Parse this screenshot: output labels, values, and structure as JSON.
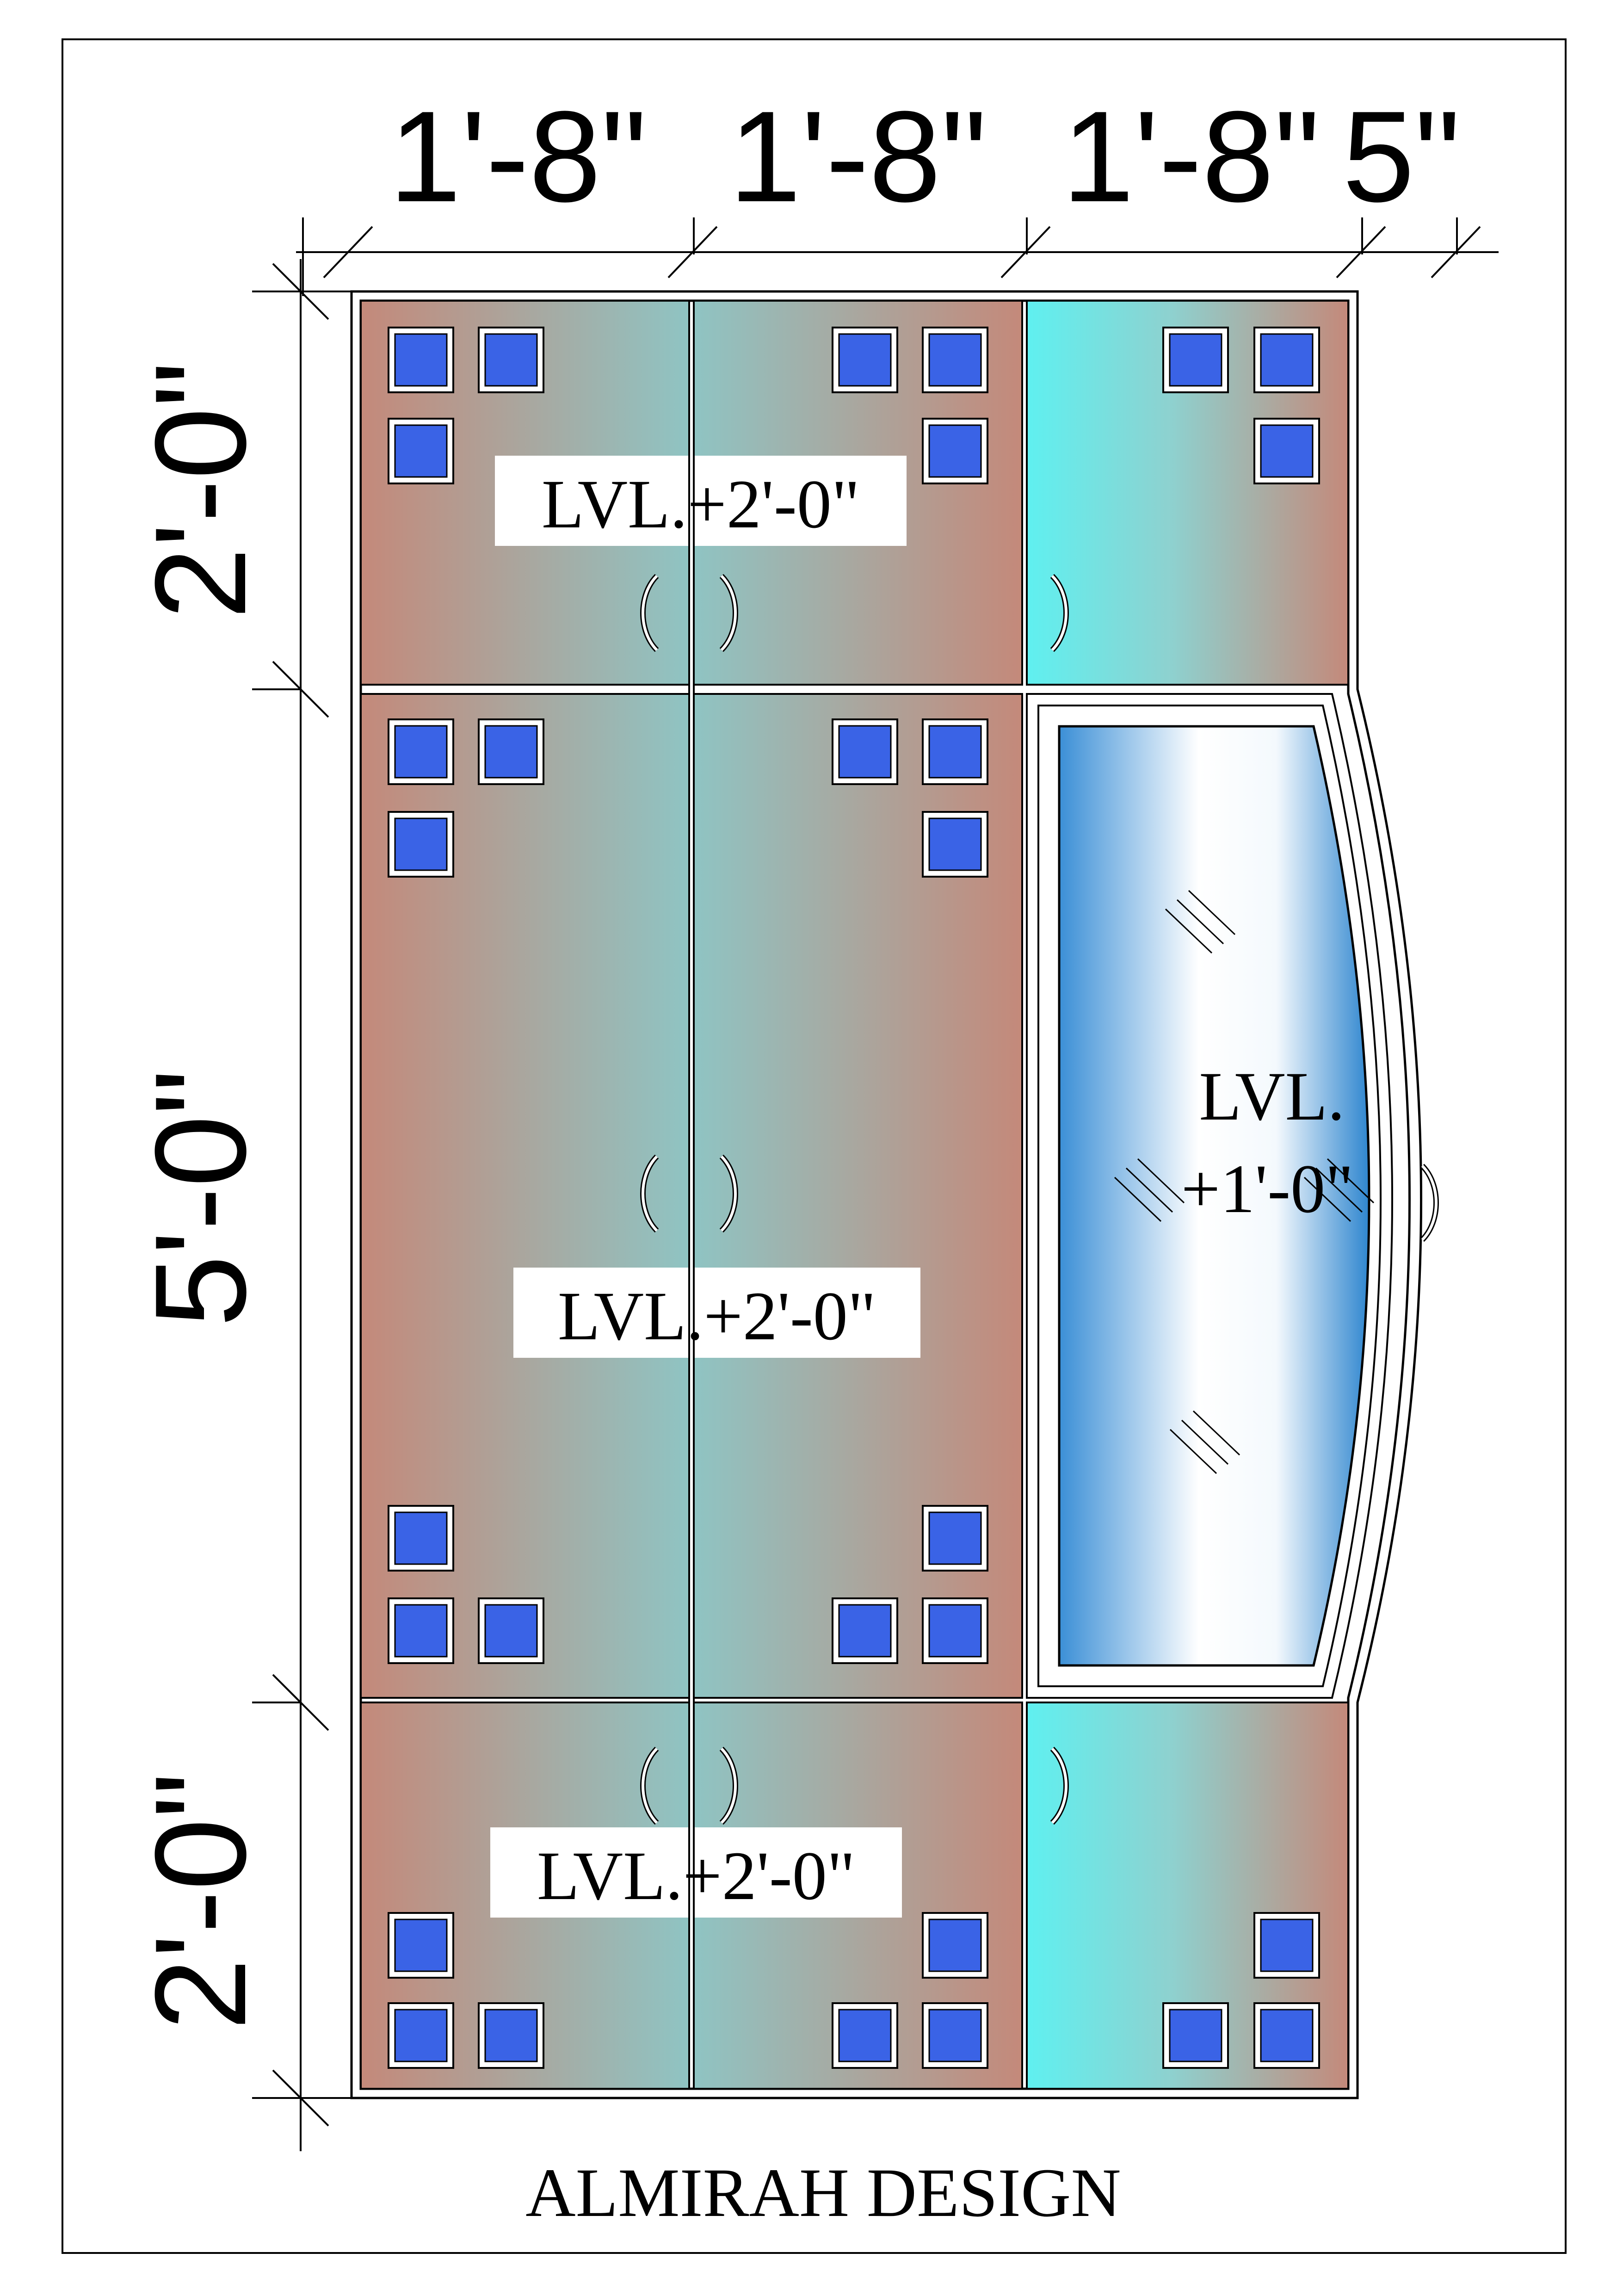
{
  "title": "ALMIRAH DESIGN",
  "dimensions": {
    "top": [
      "1'-8\"",
      "1'-8\"",
      "1'-8\"",
      "5\""
    ],
    "left": [
      "2'-0\"",
      "5'-0\"",
      "2'-0\""
    ]
  },
  "level_labels": {
    "top_section": "LVL.+2'-0\"",
    "middle_section": "LVL.+2'-0\"",
    "bottom_section": "LVL.+2'-0\"",
    "mirror_line1": "LVL.",
    "mirror_line2": "+1'-0\""
  },
  "colors": {
    "wood": "#c4897a",
    "teal": "#94c2c2",
    "cyan": "#5ff0f0",
    "square": "#3a63e6",
    "mirror_blue": "#3b93d6"
  }
}
